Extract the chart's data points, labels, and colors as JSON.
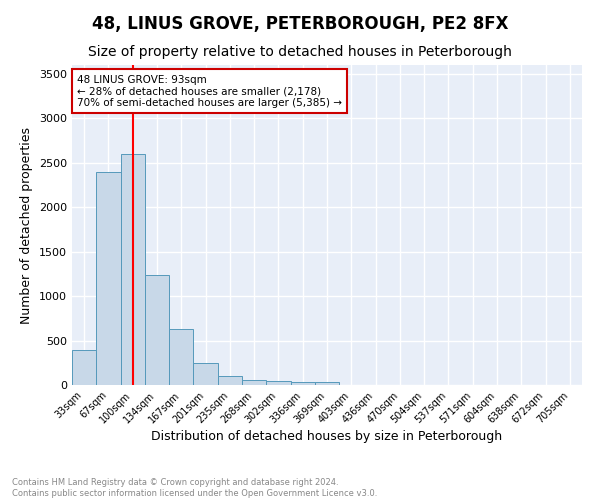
{
  "title": "48, LINUS GROVE, PETERBOROUGH, PE2 8FX",
  "subtitle": "Size of property relative to detached houses in Peterborough",
  "xlabel": "Distribution of detached houses by size in Peterborough",
  "ylabel": "Number of detached properties",
  "categories": [
    "33sqm",
    "67sqm",
    "100sqm",
    "134sqm",
    "167sqm",
    "201sqm",
    "235sqm",
    "268sqm",
    "302sqm",
    "336sqm",
    "369sqm",
    "403sqm",
    "436sqm",
    "470sqm",
    "504sqm",
    "537sqm",
    "571sqm",
    "604sqm",
    "638sqm",
    "672sqm",
    "705sqm"
  ],
  "bar_heights": [
    390,
    2400,
    2600,
    1240,
    630,
    250,
    100,
    55,
    50,
    35,
    30,
    0,
    0,
    0,
    0,
    0,
    0,
    0,
    0,
    0,
    0
  ],
  "bar_color": "#c8d8e8",
  "bar_edge_color": "#5599bb",
  "background_color": "#e8eef8",
  "grid_color": "#ffffff",
  "red_line_x": 2,
  "annotation_text": "48 LINUS GROVE: 93sqm\n← 28% of detached houses are smaller (2,178)\n70% of semi-detached houses are larger (5,385) →",
  "annotation_box_color": "#ffffff",
  "annotation_box_edge_color": "#cc0000",
  "ylim": [
    0,
    3600
  ],
  "yticks": [
    0,
    500,
    1000,
    1500,
    2000,
    2500,
    3000,
    3500
  ],
  "footnote": "Contains HM Land Registry data © Crown copyright and database right 2024.\nContains public sector information licensed under the Open Government Licence v3.0.",
  "title_fontsize": 12,
  "subtitle_fontsize": 10,
  "xlabel_fontsize": 9,
  "ylabel_fontsize": 9,
  "annotation_fontsize": 7.5
}
